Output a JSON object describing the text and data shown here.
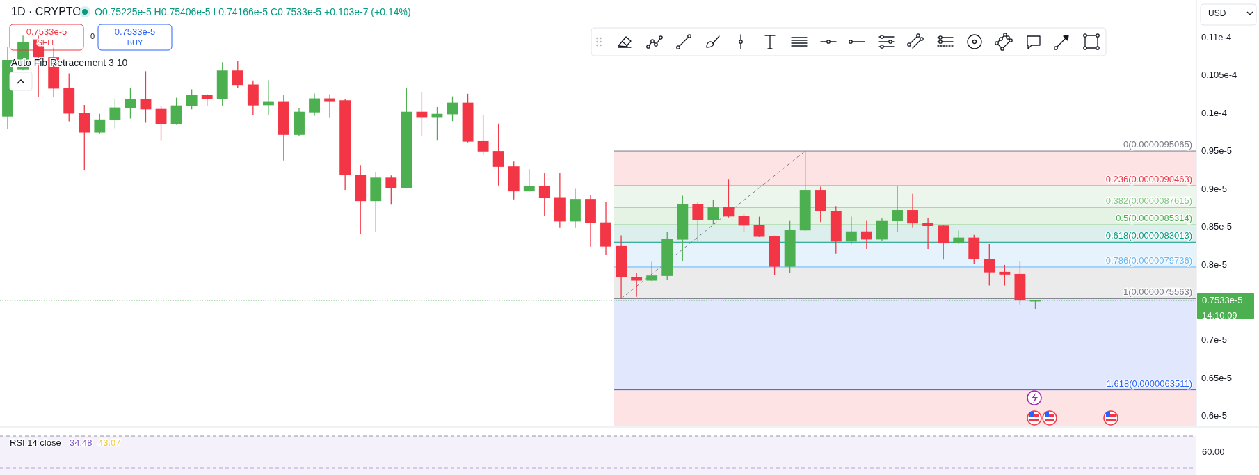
{
  "chart_data": {
    "type": "candlestick",
    "title": "1D · CRYPTO",
    "subtitle": "O0.75225e-5 H0.75406e-5 L0.74166e-5 C0.7533e-5 +0.103e-7 (+0.14%)",
    "categories": [
      null,
      null,
      null,
      null,
      null,
      null,
      null,
      null,
      null,
      null,
      null,
      null,
      null,
      null,
      null,
      null,
      null,
      null,
      null,
      null,
      null,
      null,
      null,
      null,
      null,
      null,
      null,
      null,
      null,
      null,
      null,
      null,
      null,
      null,
      null,
      null,
      null,
      null,
      null,
      null,
      null,
      null,
      null,
      null,
      null,
      null,
      null,
      null,
      null,
      null,
      null,
      null,
      null,
      null,
      null,
      null,
      null,
      null,
      null,
      null,
      null,
      null,
      null,
      null,
      null,
      null,
      null,
      null,
      null,
      null,
      null,
      null,
      null,
      null,
      null,
      null,
      null,
      null
    ],
    "ohlc": [
      [
        9.96e-06,
        1.088e-05,
        9.8e-06,
        1.071e-05
      ],
      [
        1.0585e-05,
        1.103e-05,
        1.057e-05,
        1.094e-05
      ],
      [
        1.098e-05,
        1.103e-05,
        1.0215e-05,
        1.0745e-05
      ],
      [
        1.0745e-05,
        1.087e-05,
        1.0215e-05,
        1.033e-05
      ],
      [
        1.0338e-05,
        1.0532e-05,
        9.897e-06,
        9.999e-06
      ],
      [
        1.0006e-05,
        1.0114e-05,
        9.26e-06,
        9.75e-06
      ],
      [
        9.75e-06,
        9.996e-06,
        9.74e-06,
        9.922e-06
      ],
      [
        9.916e-06,
        1.019e-05,
        9.805e-06,
        1.008e-05
      ],
      [
        1.0073e-05,
        1.0338e-05,
        9.934e-06,
        1.019e-05
      ],
      [
        1.019e-05,
        1.056e-05,
        9.879e-06,
        1.0055e-05
      ],
      [
        1.0061e-05,
        1.01e-05,
        9.639e-06,
        9.86e-06
      ],
      [
        9.86e-06,
        1.0209e-05,
        9.851e-06,
        1.0107e-05
      ],
      [
        1.01e-05,
        1.032e-05,
        1.0055e-05,
        1.0246e-05
      ],
      [
        1.0246e-05,
        1.0255e-05,
        1.0098e-05,
        1.0193e-05
      ],
      [
        1.0193e-05,
        1.068e-05,
        1.01e-05,
        1.057e-05
      ],
      [
        1.057e-05,
        1.0699e-05,
        1.0338e-05,
        1.0378e-05
      ],
      [
        1.0384e-05,
        1.0437e-05,
        9.98e-06,
        1.0107e-05
      ],
      [
        1.011e-05,
        1.044e-05,
        9.98e-06,
        1.0163e-05
      ],
      [
        1.0163e-05,
        1.0246e-05,
        9.38e-06,
        9.72e-06
      ],
      [
        9.72e-06,
        1.007e-05,
        9.707e-06,
        1.0024e-05
      ],
      [
        1.0015e-05,
        1.0264e-05,
        9.969e-06,
        1.02e-05
      ],
      [
        1.02e-05,
        1.0255e-05,
        9.95e-06,
        1.0163e-05
      ],
      [
        1.0175e-05,
        1.019e-05,
        8.992e-06,
        9.186e-06
      ],
      [
        9.192e-06,
        9.321e-06,
        8.404e-06,
        8.844e-06
      ],
      [
        8.844e-06,
        9.229e-06,
        8.437e-06,
        9.155e-06
      ],
      [
        9.155e-06,
        9.183e-06,
        8.798e-06,
        9.019e-06
      ],
      [
        9.019e-06,
        1.0338e-05,
        9.015e-06,
        1.0024e-05
      ],
      [
        1.0024e-05,
        1.0283e-05,
        9.698e-06,
        9.953e-06
      ],
      [
        9.953e-06,
        1.0086e-05,
        9.642e-06,
        9.996e-06
      ],
      [
        9.99e-06,
        1.0227e-05,
        9.9e-06,
        1.0144e-05
      ],
      [
        1.0144e-05,
        1.0262e-05,
        9.62e-06,
        9.63e-06
      ],
      [
        9.636e-06,
        9.984e-06,
        9.454e-06,
        9.5e-06
      ],
      [
        9.506e-06,
        9.867e-06,
        9.05e-06,
        9.297e-06
      ],
      [
        9.303e-06,
        9.368e-06,
        8.866e-06,
        8.973e-06
      ],
      [
        8.973e-06,
        9.266e-06,
        8.97e-06,
        9.044e-06
      ],
      [
        9.044e-06,
        9.213e-06,
        8.644e-06,
        8.89e-06
      ],
      [
        8.896e-06,
        9.213e-06,
        8.49e-06,
        8.576e-06
      ],
      [
        8.576e-06,
        9.007e-06,
        8.49e-06,
        8.872e-06
      ],
      [
        8.872e-06,
        8.921e-06,
        8.243e-06,
        8.557e-06
      ],
      [
        8.564e-06,
        8.835e-06,
        8.136e-06,
        8.243e-06
      ],
      [
        8.25e-06,
        8.391e-06,
        7.5563e-06,
        7.836e-06
      ],
      [
        7.843e-06,
        7.898e-06,
        7.581e-06,
        7.794e-06
      ],
      [
        7.794e-06,
        8.043e-06,
        7.787e-06,
        7.861e-06
      ],
      [
        7.855e-06,
        8.434e-06,
        7.806e-06,
        8.342e-06
      ],
      [
        8.335e-06,
        8.915e-06,
        8.053e-06,
        8.804e-06
      ],
      [
        8.804e-06,
        8.832e-06,
        8.32e-06,
        8.596e-06
      ],
      [
        8.596e-06,
        8.86e-06,
        8.539e-06,
        8.762e-06
      ],
      [
        8.765e-06,
        9.128e-06,
        8.628e-06,
        8.641e-06
      ],
      [
        8.649e-06,
        8.675e-06,
        8.433e-06,
        8.521e-06
      ],
      [
        8.532e-06,
        8.638e-06,
        8.37e-06,
        8.373e-06
      ],
      [
        8.38e-06,
        8.388e-06,
        7.867e-06,
        7.977e-06
      ],
      [
        7.977e-06,
        8.582e-06,
        7.896e-06,
        8.462e-06
      ],
      [
        8.458e-06,
        9.5065e-06,
        8.45e-06,
        8.992e-06
      ],
      [
        8.992e-06,
        9.035e-06,
        8.567e-06,
        8.709e-06
      ],
      [
        8.713e-06,
        8.78e-06,
        8.15e-06,
        8.31e-06
      ],
      [
        8.31e-06,
        8.638e-06,
        8.274e-06,
        8.444e-06
      ],
      [
        8.444e-06,
        8.585e-06,
        8.213e-06,
        8.337e-06
      ],
      [
        8.337e-06,
        8.62e-06,
        8.32e-06,
        8.582e-06
      ],
      [
        8.579e-06,
        9.045e-06,
        8.433e-06,
        8.726e-06
      ],
      [
        8.726e-06,
        8.939e-06,
        8.49e-06,
        8.55e-06
      ],
      [
        8.557e-06,
        8.62e-06,
        8.213e-06,
        8.515e-06
      ],
      [
        8.521e-06,
        8.527e-06,
        8.072e-06,
        8.285e-06
      ],
      [
        8.285e-06,
        8.455e-06,
        8.277e-06,
        8.362e-06
      ],
      [
        8.362e-06,
        8.397e-06,
        8.009e-06,
        8.08e-06
      ],
      [
        8.08e-06,
        8.277e-06,
        7.729e-06,
        7.903e-06
      ],
      [
        7.91e-06,
        8.002e-06,
        7.729e-06,
        7.874e-06
      ],
      [
        7.882e-06,
        8.055e-06,
        7.478e-06,
        7.531e-06
      ],
      [
        7.5225e-06,
        7.5406e-06,
        7.4166e-06,
        7.533e-06
      ],
      null,
      null,
      null,
      null,
      null,
      null,
      null,
      null,
      null,
      null
    ],
    "colors": [
      "#4caf50",
      "#4caf50",
      "#f23645",
      "#f23645",
      "#f23645",
      "#f23645",
      "#4caf50",
      "#4caf50",
      "#4caf50",
      "#f23645",
      "#f23645",
      "#4caf50",
      "#4caf50",
      "#f23645",
      "#4caf50",
      "#f23645",
      "#f23645",
      "#4caf50",
      "#f23645",
      "#4caf50",
      "#4caf50",
      "#f23645",
      "#f23645",
      "#f23645",
      "#4caf50",
      "#f23645",
      "#4caf50",
      "#f23645",
      "#4caf50",
      "#4caf50",
      "#f23645",
      "#f23645",
      "#f23645",
      "#f23645",
      "#4caf50",
      "#f23645",
      "#f23645",
      "#4caf50",
      "#f23645",
      "#f23645",
      "#f23645",
      "#f23645",
      "#4caf50",
      "#4caf50",
      "#4caf50",
      "#f23645",
      "#4caf50",
      "#f23645",
      "#f23645",
      "#f23645",
      "#f23645",
      "#4caf50",
      "#4caf50",
      "#f23645",
      "#f23645",
      "#4caf50",
      "#f23645",
      "#4caf50",
      "#4caf50",
      "#f23645",
      "#f23645",
      "#f23645",
      "#4caf50",
      "#f23645",
      "#f23645",
      "#f23645",
      "#f23645",
      "#4caf50",
      null,
      null,
      null,
      null,
      null,
      null,
      null,
      null,
      null,
      null
    ],
    "ylim": [
      5.87e-06,
      1.15e-05
    ],
    "yticks": [
      {
        "value": 6e-06,
        "label": "0.6e-5"
      },
      {
        "value": 6.5e-06,
        "label": "0.65e-5"
      },
      {
        "value": 7e-06,
        "label": "0.7e-5"
      },
      {
        "value": 8e-06,
        "label": "0.8e-5"
      },
      {
        "value": 8.5e-06,
        "label": "0.85e-5"
      },
      {
        "value": 9e-06,
        "label": "0.9e-5"
      },
      {
        "value": 9.5e-06,
        "label": "0.95e-5"
      },
      {
        "value": 1e-05,
        "label": "0.1e-4"
      },
      {
        "value": 1.05e-05,
        "label": "0.105e-4"
      },
      {
        "value": 1.1e-05,
        "label": "0.11e-4"
      }
    ],
    "tick_labels": "y",
    "bands": [
      {
        "axis": "y",
        "from": 9.0463e-06,
        "to": 9.5065e-06,
        "color": "#fde3e4"
      },
      {
        "axis": "y",
        "from": 8.7615e-06,
        "to": 9.0463e-06,
        "color": "#edf6ec"
      },
      {
        "axis": "y",
        "from": 8.5314e-06,
        "to": 8.7615e-06,
        "color": "#e5f3e5"
      },
      {
        "axis": "y",
        "from": 8.3013e-06,
        "to": 8.5314e-06,
        "color": "#dcefec"
      },
      {
        "axis": "y",
        "from": 7.9736e-06,
        "to": 8.3013e-06,
        "color": "#e6f3fd"
      },
      {
        "axis": "y",
        "from": 7.5563e-06,
        "to": 7.9736e-06,
        "color": "#ebebeb"
      },
      {
        "axis": "y",
        "from": 6.3511e-06,
        "to": 7.5563e-06,
        "color": "#e1e7fc"
      },
      {
        "axis": "y",
        "from": 5.87e-06,
        "to": 6.3511e-06,
        "color": "#fde3e4"
      }
    ],
    "ref_lines": [
      {
        "axis": "y",
        "value": 9.5065e-06,
        "label": "0(0.0000095065)",
        "color": "#787b86"
      },
      {
        "axis": "y",
        "value": 9.0463e-06,
        "label": "0.236(0.0000090463)",
        "color": "#f23645"
      },
      {
        "axis": "y",
        "value": 8.7615e-06,
        "label": "0.382(0.0000087615)",
        "color": "#81c784"
      },
      {
        "axis": "y",
        "value": 8.5314e-06,
        "label": "0.5(0.0000085314)",
        "color": "#4caf50"
      },
      {
        "axis": "y",
        "value": 8.3013e-06,
        "label": "0.618(0.0000083013)",
        "color": "#089981"
      },
      {
        "axis": "y",
        "value": 7.9736e-06,
        "label": "0.786(0.0000079736)",
        "color": "#64b5f6"
      },
      {
        "axis": "y",
        "value": 7.5563e-06,
        "label": "1(0.0000075563)",
        "color": "#787b86"
      },
      {
        "axis": "y",
        "value": 6.3511e-06,
        "label": "1.618(0.0000063511)",
        "color": "#2962ff"
      },
      {
        "axis": "y",
        "value": 7.533e-06,
        "label": "0.7533e-5",
        "color": "#4caf50",
        "line_style": "dotted"
      }
    ],
    "annotations": [
      "0.7533e-5",
      "SELL",
      "0",
      "0.7533e-5",
      "BUY",
      "Auto Fib Retracement 3 10",
      "USD",
      "14:10:09",
      "RSI 14 close",
      "34.48",
      "43.07",
      "60.00"
    ]
  }
}
